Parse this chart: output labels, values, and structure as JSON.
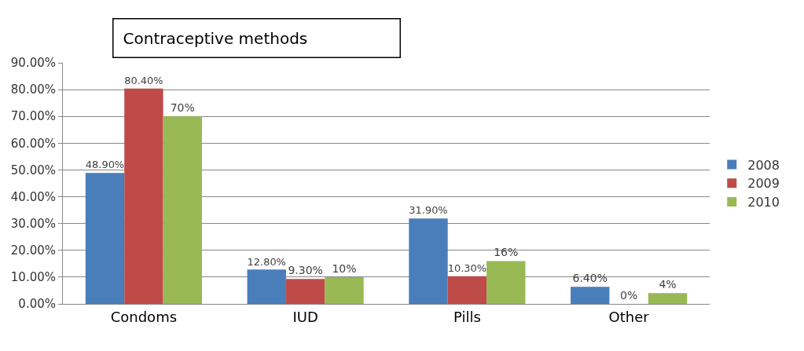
{
  "chart_data": {
    "type": "bar",
    "title": "Contraceptive methods",
    "categories": [
      "Condoms",
      "IUD",
      "Pills",
      "Other"
    ],
    "series": [
      {
        "name": "2008",
        "color": "#4a7ebb",
        "values": [
          48.9,
          12.8,
          31.9,
          6.4
        ],
        "value_labels": [
          "48.90%",
          "12.80%",
          "31.90%",
          "6.40%"
        ]
      },
      {
        "name": "2009",
        "color": "#be4b48",
        "values": [
          80.4,
          9.3,
          10.3,
          0
        ],
        "value_labels": [
          "80.40%",
          "9.30%",
          "10.30%",
          "0%"
        ]
      },
      {
        "name": "2010",
        "color": "#98b954",
        "values": [
          70,
          10,
          16,
          4
        ],
        "value_labels": [
          "70%",
          "10%",
          "16%",
          "4%"
        ]
      }
    ],
    "ylim": [
      0,
      90
    ],
    "yticks": [
      {
        "value": 0,
        "label": "0.00%"
      },
      {
        "value": 10,
        "label": "10.00%"
      },
      {
        "value": 20,
        "label": "20.00%"
      },
      {
        "value": 30,
        "label": "30.00%"
      },
      {
        "value": 40,
        "label": "40.00%"
      },
      {
        "value": 50,
        "label": "50.00%"
      },
      {
        "value": 60,
        "label": "60.00%"
      },
      {
        "value": 70,
        "label": "70.00%"
      },
      {
        "value": 80,
        "label": "80.00%"
      },
      {
        "value": 90,
        "label": "90.00%"
      }
    ],
    "grid": "y",
    "legend": "right"
  }
}
